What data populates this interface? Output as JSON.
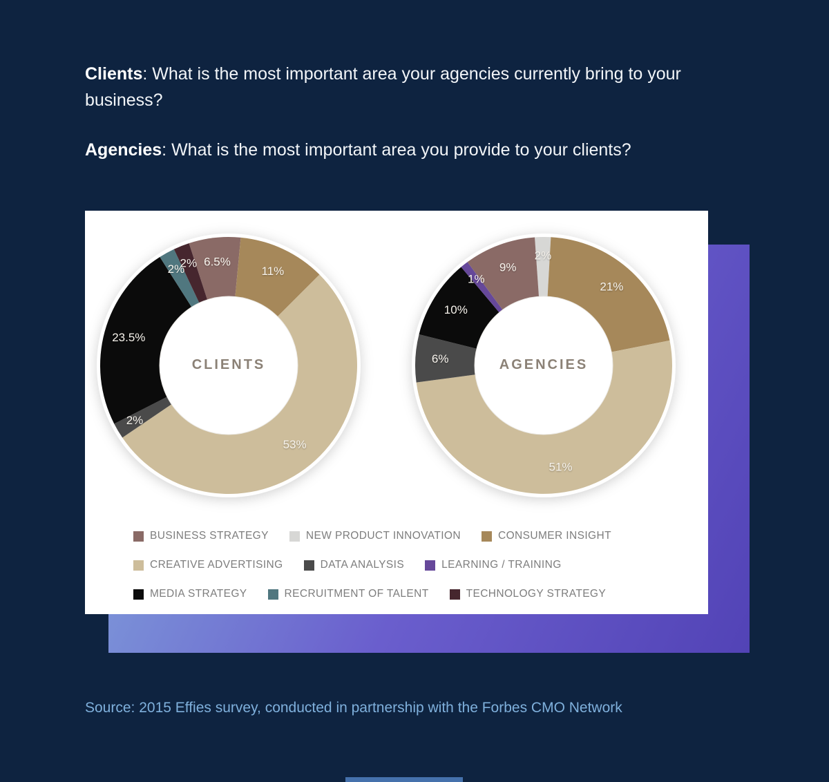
{
  "intro": {
    "q1_label": "Clients",
    "q1_rest": ": What is the most important area your agencies currently bring to your business?",
    "q2_label": "Agencies",
    "q2_rest": ": What is the most important area you provide to your clients?"
  },
  "source": {
    "text": "Source: 2015 Effies survey, conducted in partnership with the Forbes CMO Network"
  },
  "colors": {
    "background": "#0e2340",
    "gradient_start": "#84aede",
    "gradient_end": "#5243b6",
    "card": "#ffffff",
    "source_text": "#7fb0dc"
  },
  "legend": [
    {
      "label": "BUSINESS STRATEGY",
      "color": "#8a6a66"
    },
    {
      "label": "NEW PRODUCT INNOVATION",
      "color": "#d7d7d5"
    },
    {
      "label": "CONSUMER INSIGHT",
      "color": "#a6885a"
    },
    {
      "label": "CREATIVE ADVERTISING",
      "color": "#cdbd9b"
    },
    {
      "label": "DATA ANALYSIS",
      "color": "#4a4a4a"
    },
    {
      "label": "LEARNING / TRAINING",
      "color": "#66489a"
    },
    {
      "label": "MEDIA STRATEGY",
      "color": "#0b0b0b"
    },
    {
      "label": "RECRUITMENT OF TALENT",
      "color": "#50777f"
    },
    {
      "label": "TECHNOLOGY STRATEGY",
      "color": "#46262e"
    }
  ],
  "chart_data": [
    {
      "type": "pie",
      "variant": "donut",
      "title": "CLIENTS",
      "unit": "%",
      "start_angle": -18,
      "legend_position": "bottom",
      "slices": [
        {
          "label": "BUSINESS STRATEGY",
          "value": 6.5,
          "color": "#8a6a66"
        },
        {
          "label": "CONSUMER INSIGHT",
          "value": 11,
          "color": "#a6885a"
        },
        {
          "label": "CREATIVE ADVERTISING",
          "value": 53,
          "color": "#cdbd9b"
        },
        {
          "label": "DATA ANALYSIS",
          "value": 2,
          "color": "#4a4a4a"
        },
        {
          "label": "MEDIA STRATEGY",
          "value": 23.5,
          "color": "#0b0b0b"
        },
        {
          "label": "RECRUITMENT OF TALENT",
          "value": 2,
          "color": "#50777f"
        },
        {
          "label": "TECHNOLOGY STRATEGY",
          "value": 2,
          "color": "#46262e"
        }
      ]
    },
    {
      "type": "pie",
      "variant": "donut",
      "title": "AGENCIES",
      "unit": "%",
      "start_angle": -4,
      "legend_position": "bottom",
      "slices": [
        {
          "label": "NEW PRODUCT INNOVATION",
          "value": 2,
          "color": "#d7d7d5"
        },
        {
          "label": "CONSUMER INSIGHT",
          "value": 21,
          "color": "#a6885a"
        },
        {
          "label": "CREATIVE ADVERTISING",
          "value": 51,
          "color": "#cdbd9b"
        },
        {
          "label": "DATA ANALYSIS",
          "value": 6,
          "color": "#4a4a4a"
        },
        {
          "label": "MEDIA STRATEGY",
          "value": 10,
          "color": "#0b0b0b"
        },
        {
          "label": "LEARNING / TRAINING",
          "value": 1,
          "color": "#66489a"
        },
        {
          "label": "BUSINESS STRATEGY",
          "value": 9,
          "color": "#8a6a66"
        }
      ]
    }
  ]
}
